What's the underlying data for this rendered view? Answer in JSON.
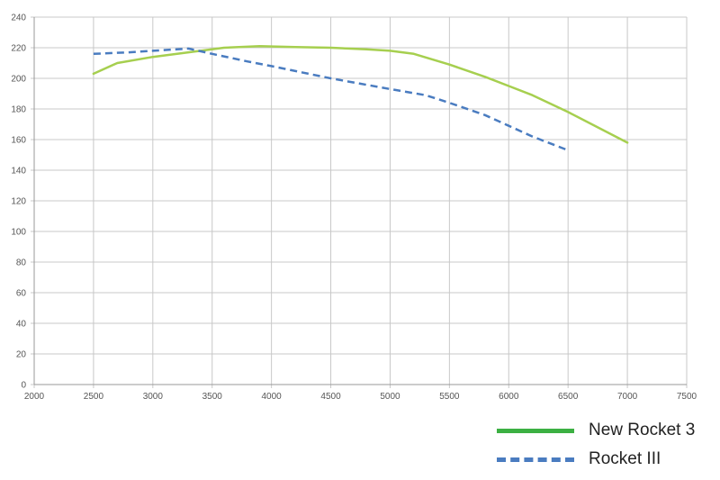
{
  "chart_data": {
    "type": "line",
    "title": "",
    "xlabel": "",
    "ylabel": "",
    "xlim": [
      2000,
      7500
    ],
    "ylim": [
      0,
      240
    ],
    "x_ticks": [
      2000,
      2500,
      3000,
      3500,
      4000,
      4500,
      5000,
      5500,
      6000,
      6500,
      7000,
      7500
    ],
    "y_ticks": [
      0,
      20,
      40,
      60,
      80,
      100,
      120,
      140,
      160,
      180,
      200,
      220,
      240
    ],
    "grid": true,
    "legend_position": "bottom-right",
    "series": [
      {
        "name": "New Rocket 3",
        "color": "#a6cf4f",
        "legend_color": "#3cb043",
        "style": "solid",
        "points": [
          [
            2500,
            203
          ],
          [
            2700,
            210
          ],
          [
            3000,
            214
          ],
          [
            3300,
            217
          ],
          [
            3600,
            220
          ],
          [
            3900,
            221
          ],
          [
            4200,
            220.5
          ],
          [
            4500,
            220
          ],
          [
            4800,
            219
          ],
          [
            5000,
            218
          ],
          [
            5200,
            216
          ],
          [
            5500,
            209
          ],
          [
            5800,
            201
          ],
          [
            6000,
            195
          ],
          [
            6200,
            189
          ],
          [
            6500,
            178
          ],
          [
            7000,
            158
          ]
        ]
      },
      {
        "name": "Rocket III",
        "color": "#4a7cc0",
        "legend_color": "#4a7cc0",
        "style": "dashed",
        "points": [
          [
            2500,
            216
          ],
          [
            2800,
            217
          ],
          [
            3000,
            218
          ],
          [
            3300,
            219.5
          ],
          [
            3500,
            216
          ],
          [
            3800,
            211
          ],
          [
            4000,
            208
          ],
          [
            4500,
            200
          ],
          [
            5000,
            193
          ],
          [
            5300,
            189
          ],
          [
            5500,
            184
          ],
          [
            5800,
            176
          ],
          [
            6000,
            169
          ],
          [
            6200,
            162
          ],
          [
            6500,
            153
          ]
        ]
      }
    ]
  }
}
